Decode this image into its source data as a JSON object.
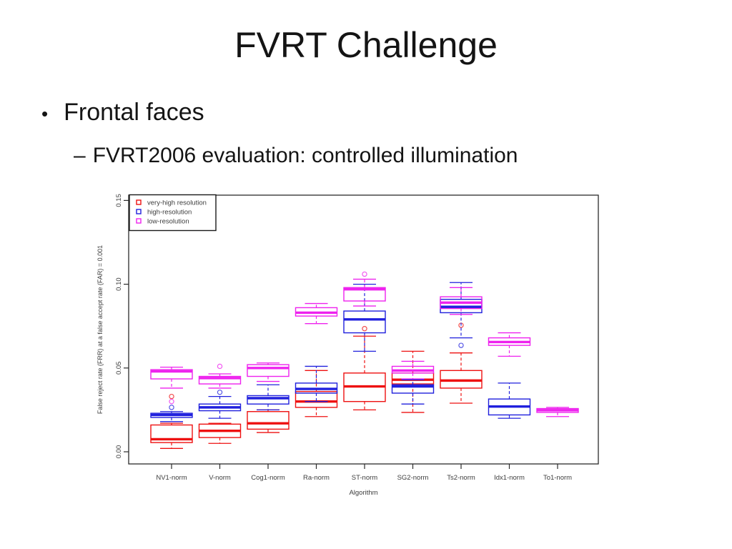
{
  "slide": {
    "title": "FVRT Challenge",
    "bullet_marker": "•",
    "bullet": "Frontal faces",
    "sub_bullet_marker": "–",
    "sub_bullet": "FVRT2006 evaluation: controlled illumination"
  },
  "chart_data": {
    "type": "boxplot",
    "title": "",
    "xlabel": "Algorithm",
    "ylabel": "False reject rate (FRR) at a false accept rate (FAR) = 0.001",
    "ylim": [
      0,
      0.155
    ],
    "yticks": [
      0,
      0.05,
      0.1,
      0.15
    ],
    "grid": false,
    "legend_position": "top-left",
    "categories": [
      "NV1-norm",
      "V-norm",
      "Cog1-norm",
      "Ra-norm",
      "ST-norm",
      "SG2-norm",
      "Ts2-norm",
      "Idx1-norm",
      "To1-norm"
    ],
    "legend": [
      {
        "label": "very-high resolution",
        "color": "#ee1111"
      },
      {
        "label": "high-resolution",
        "color": "#2020dd"
      },
      {
        "label": "low-resolution",
        "color": "#ee22ee"
      }
    ],
    "series": [
      {
        "name": "very-high resolution",
        "color": "#ee1111",
        "values": [
          {
            "lo": 0.002,
            "q1": 0.0055,
            "med": 0.0075,
            "q3": 0.016,
            "hi": 0.017,
            "out": [
              0.033
            ]
          },
          {
            "lo": 0.005,
            "q1": 0.0085,
            "med": 0.0125,
            "q3": 0.0165,
            "hi": 0.017,
            "out": []
          },
          {
            "lo": 0.0115,
            "q1": 0.0135,
            "med": 0.017,
            "q3": 0.024,
            "hi": 0.025,
            "out": []
          },
          {
            "lo": 0.021,
            "q1": 0.0265,
            "med": 0.03,
            "q3": 0.036,
            "hi": 0.0485,
            "out": []
          },
          {
            "lo": 0.025,
            "q1": 0.03,
            "med": 0.039,
            "q3": 0.047,
            "hi": 0.069,
            "out": [
              0.0735
            ]
          },
          {
            "lo": 0.0235,
            "q1": 0.0405,
            "med": 0.043,
            "q3": 0.047,
            "hi": 0.06,
            "out": []
          },
          {
            "lo": 0.029,
            "q1": 0.038,
            "med": 0.0425,
            "q3": 0.0485,
            "hi": 0.059,
            "out": [
              0.0755
            ]
          },
          null,
          null
        ]
      },
      {
        "name": "high-resolution",
        "color": "#2020dd",
        "values": [
          {
            "lo": 0.018,
            "q1": 0.0205,
            "med": 0.022,
            "q3": 0.023,
            "hi": 0.024,
            "out": [
              0.0265
            ]
          },
          {
            "lo": 0.02,
            "q1": 0.0245,
            "med": 0.0265,
            "q3": 0.0285,
            "hi": 0.033,
            "out": [
              0.0355
            ]
          },
          {
            "lo": 0.025,
            "q1": 0.0285,
            "med": 0.032,
            "q3": 0.0335,
            "hi": 0.04,
            "out": []
          },
          {
            "lo": 0.03,
            "q1": 0.035,
            "med": 0.0375,
            "q3": 0.041,
            "hi": 0.051,
            "out": []
          },
          {
            "lo": 0.06,
            "q1": 0.071,
            "med": 0.079,
            "q3": 0.084,
            "hi": 0.1,
            "out": []
          },
          {
            "lo": 0.0285,
            "q1": 0.035,
            "med": 0.039,
            "q3": 0.04,
            "hi": 0.043,
            "out": []
          },
          {
            "lo": 0.068,
            "q1": 0.083,
            "med": 0.0865,
            "q3": 0.091,
            "hi": 0.101,
            "out": [
              0.0635
            ]
          },
          {
            "lo": 0.02,
            "q1": 0.022,
            "med": 0.027,
            "q3": 0.0315,
            "hi": 0.041,
            "out": []
          },
          null
        ]
      },
      {
        "name": "low-resolution",
        "color": "#ee22ee",
        "values": [
          {
            "lo": 0.038,
            "q1": 0.0435,
            "med": 0.048,
            "q3": 0.049,
            "hi": 0.0505,
            "out": [
              0.03
            ]
          },
          {
            "lo": 0.038,
            "q1": 0.0405,
            "med": 0.044,
            "q3": 0.045,
            "hi": 0.0465,
            "out": [
              0.051
            ]
          },
          {
            "lo": 0.042,
            "q1": 0.045,
            "med": 0.05,
            "q3": 0.052,
            "hi": 0.053,
            "out": []
          },
          {
            "lo": 0.0765,
            "q1": 0.081,
            "med": 0.083,
            "q3": 0.086,
            "hi": 0.0885,
            "out": []
          },
          {
            "lo": 0.087,
            "q1": 0.09,
            "med": 0.097,
            "q3": 0.098,
            "hi": 0.103,
            "out": [
              0.106
            ]
          },
          {
            "lo": 0.0435,
            "q1": 0.047,
            "med": 0.0485,
            "q3": 0.051,
            "hi": 0.054,
            "out": []
          },
          {
            "lo": 0.082,
            "q1": 0.0855,
            "med": 0.089,
            "q3": 0.0925,
            "hi": 0.098,
            "out": []
          },
          {
            "lo": 0.057,
            "q1": 0.0635,
            "med": 0.0655,
            "q3": 0.068,
            "hi": 0.071,
            "out": []
          },
          {
            "lo": 0.021,
            "q1": 0.0235,
            "med": 0.0248,
            "q3": 0.0258,
            "hi": 0.0265,
            "out": []
          }
        ]
      }
    ]
  }
}
